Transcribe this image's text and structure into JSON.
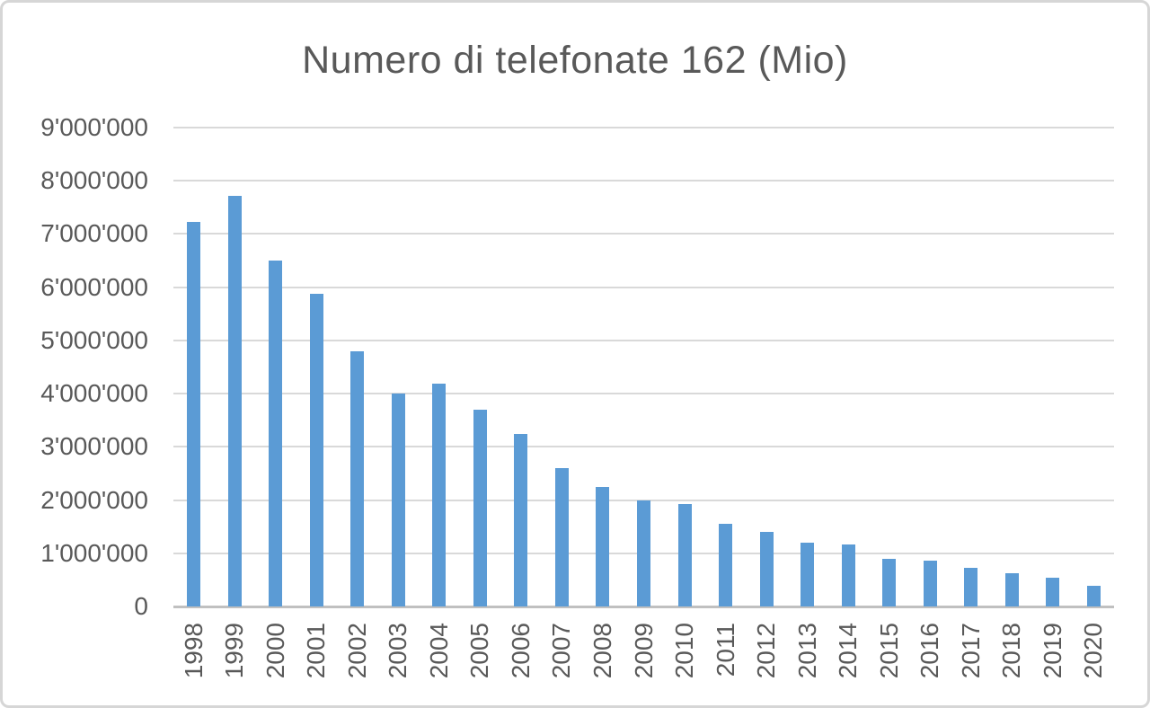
{
  "chart_data": {
    "type": "bar",
    "title": "Numero di telefonate 162 (Mio)",
    "categories": [
      "1998",
      "1999",
      "2000",
      "2001",
      "2002",
      "2003",
      "2004",
      "2005",
      "2006",
      "2007",
      "2008",
      "2009",
      "2010",
      "2011",
      "2012",
      "2013",
      "2014",
      "2015",
      "2016",
      "2017",
      "2018",
      "2019",
      "2020"
    ],
    "values": [
      7230000,
      7710000,
      6500000,
      5880000,
      4800000,
      4000000,
      4190000,
      3700000,
      3250000,
      2600000,
      2240000,
      2000000,
      1930000,
      1550000,
      1400000,
      1200000,
      1170000,
      900000,
      860000,
      730000,
      620000,
      540000,
      380000
    ],
    "xlabel": "",
    "ylabel": "",
    "ylim": [
      0,
      9000000
    ],
    "y_tick_step": 1000000,
    "y_tick_labels": [
      "0",
      "1'000'000",
      "2'000'000",
      "3'000'000",
      "4'000'000",
      "5'000'000",
      "6'000'000",
      "7'000'000",
      "8'000'000",
      "9'000'000"
    ],
    "grid": true,
    "legend": "none",
    "colors": {
      "bar": "#5B9BD5",
      "gridline": "#D9D9D9",
      "axis_line": "#C0C0C0",
      "text": "#595959",
      "background": "#FFFFFF",
      "border": "#D6D6D6"
    }
  }
}
